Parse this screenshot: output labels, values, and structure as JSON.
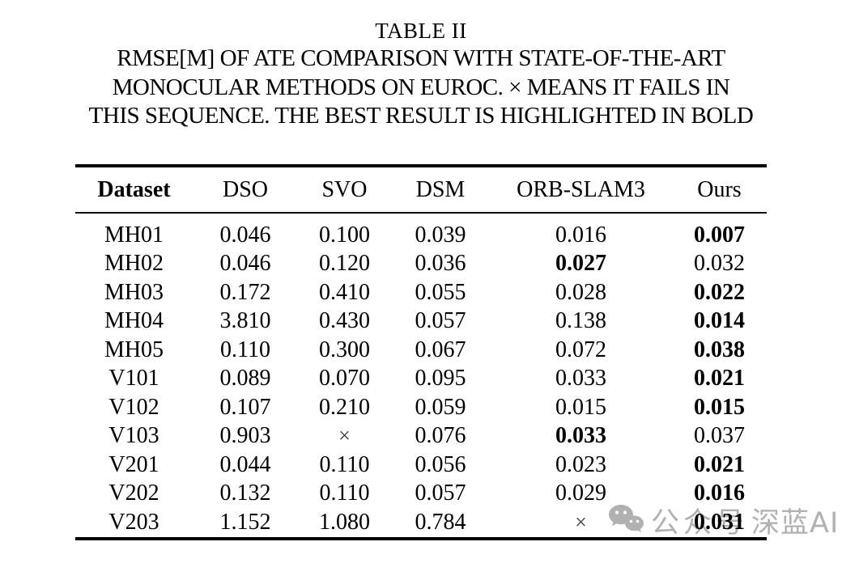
{
  "page": {
    "title": "TABLE II",
    "caption_lines": [
      "RMSE[M] OF ATE COMPARISON WITH STATE-OF-THE-ART",
      "MONOCULAR METHODS ON EUROC. × MEANS IT FAILS IN",
      "THIS SEQUENCE. THE BEST RESULT IS HIGHLIGHTED IN BOLD"
    ]
  },
  "table": {
    "headers": [
      "Dataset",
      "DSO",
      "SVO",
      "DSM",
      "ORB-SLAM3",
      "Ours"
    ],
    "failure_symbol": "×",
    "rows": [
      {
        "dataset": "MH01",
        "values": [
          "0.046",
          "0.100",
          "0.039",
          "0.016",
          "0.007"
        ],
        "bold": [
          false,
          false,
          false,
          false,
          true
        ]
      },
      {
        "dataset": "MH02",
        "values": [
          "0.046",
          "0.120",
          "0.036",
          "0.027",
          "0.032"
        ],
        "bold": [
          false,
          false,
          false,
          true,
          false
        ]
      },
      {
        "dataset": "MH03",
        "values": [
          "0.172",
          "0.410",
          "0.055",
          "0.028",
          "0.022"
        ],
        "bold": [
          false,
          false,
          false,
          false,
          true
        ]
      },
      {
        "dataset": "MH04",
        "values": [
          "3.810",
          "0.430",
          "0.057",
          "0.138",
          "0.014"
        ],
        "bold": [
          false,
          false,
          false,
          false,
          true
        ]
      },
      {
        "dataset": "MH05",
        "values": [
          "0.110",
          "0.300",
          "0.067",
          "0.072",
          "0.038"
        ],
        "bold": [
          false,
          false,
          false,
          false,
          true
        ]
      },
      {
        "dataset": "V101",
        "values": [
          "0.089",
          "0.070",
          "0.095",
          "0.033",
          "0.021"
        ],
        "bold": [
          false,
          false,
          false,
          false,
          true
        ]
      },
      {
        "dataset": "V102",
        "values": [
          "0.107",
          "0.210",
          "0.059",
          "0.015",
          "0.015"
        ],
        "bold": [
          false,
          false,
          false,
          false,
          true
        ]
      },
      {
        "dataset": "V103",
        "values": [
          "0.903",
          "×",
          "0.076",
          "0.033",
          "0.037"
        ],
        "bold": [
          false,
          false,
          false,
          true,
          false
        ]
      },
      {
        "dataset": "V201",
        "values": [
          "0.044",
          "0.110",
          "0.056",
          "0.023",
          "0.021"
        ],
        "bold": [
          false,
          false,
          false,
          false,
          true
        ]
      },
      {
        "dataset": "V202",
        "values": [
          "0.132",
          "0.110",
          "0.057",
          "0.029",
          "0.016"
        ],
        "bold": [
          false,
          false,
          false,
          false,
          true
        ]
      },
      {
        "dataset": "V203",
        "values": [
          "1.152",
          "1.080",
          "0.784",
          "×",
          "0.031"
        ],
        "bold": [
          false,
          false,
          false,
          false,
          true
        ]
      }
    ]
  },
  "watermark": {
    "icon": "wechat-icon",
    "left_text": "公众号",
    "right_text": "深蓝AI",
    "color": "#b1b1b1"
  }
}
